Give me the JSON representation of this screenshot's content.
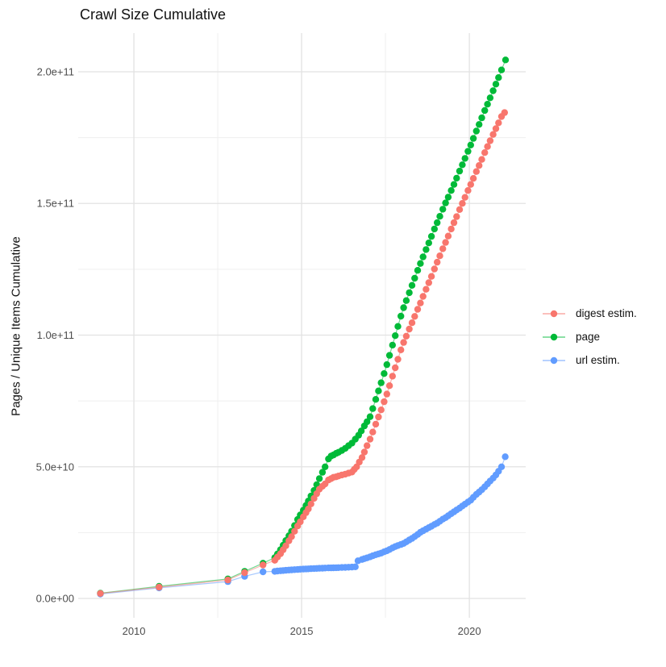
{
  "title": "Crawl Size Cumulative",
  "chart_data": {
    "type": "line",
    "title": "Crawl Size Cumulative",
    "xlabel": "",
    "ylabel": "Pages / Unique Items Cumulative",
    "values_unit": "billions (1e9) of pages / unique items",
    "x_domain": [
      2008.34,
      2021.68
    ],
    "y_domain_e9": [
      -7.35,
      214.7
    ],
    "grid": "on",
    "legend_position": "right-center",
    "x_ticks": [
      {
        "value": 2010,
        "label": "2010"
      },
      {
        "value": 2015,
        "label": "2015"
      },
      {
        "value": 2020,
        "label": "2020"
      }
    ],
    "x_minor_ticks": [
      2012.5,
      2017.5
    ],
    "y_ticks": [
      {
        "value_e9": 0,
        "label": "0.0e+00"
      },
      {
        "value_e9": 50,
        "label": "5.0e+10"
      },
      {
        "value_e9": 100,
        "label": "1.0e+11"
      },
      {
        "value_e9": 150,
        "label": "1.5e+11"
      },
      {
        "value_e9": 200,
        "label": "2.0e+11"
      }
    ],
    "y_minor_ticks_e9": [
      25,
      75,
      125,
      175
    ],
    "series": [
      {
        "name": "digest estim.",
        "color": "#F8766D",
        "points": [
          [
            2009.0,
            1.9
          ],
          [
            2010.75,
            4.3
          ],
          [
            2012.8,
            7.0
          ],
          [
            2013.3,
            9.8
          ],
          [
            2013.85,
            12.7
          ],
          [
            2014.2,
            14.5
          ],
          [
            2014.28,
            15.7
          ],
          [
            2014.37,
            17.0
          ],
          [
            2014.45,
            18.5
          ],
          [
            2014.53,
            20.0
          ],
          [
            2014.62,
            21.9
          ],
          [
            2014.7,
            23.5
          ],
          [
            2014.79,
            25.5
          ],
          [
            2014.88,
            27.5
          ],
          [
            2014.96,
            29.1
          ],
          [
            2015.05,
            31.0
          ],
          [
            2015.13,
            32.6
          ],
          [
            2015.2,
            34.0
          ],
          [
            2015.28,
            35.9
          ],
          [
            2015.37,
            38.0
          ],
          [
            2015.45,
            39.8
          ],
          [
            2015.53,
            41.5
          ],
          [
            2015.62,
            42.6
          ],
          [
            2015.7,
            43.5
          ],
          [
            2015.8,
            45.0
          ],
          [
            2015.88,
            45.5
          ],
          [
            2015.95,
            46.0
          ],
          [
            2016.03,
            46.2
          ],
          [
            2016.1,
            46.5
          ],
          [
            2016.2,
            46.9
          ],
          [
            2016.3,
            47.2
          ],
          [
            2016.4,
            47.6
          ],
          [
            2016.5,
            48.0
          ],
          [
            2016.57,
            49.0
          ],
          [
            2016.64,
            50.0
          ],
          [
            2016.72,
            51.8
          ],
          [
            2016.8,
            53.5
          ],
          [
            2016.87,
            55.6
          ],
          [
            2016.95,
            58.0
          ],
          [
            2017.04,
            60.5
          ],
          [
            2017.12,
            63.2
          ],
          [
            2017.21,
            66.2
          ],
          [
            2017.29,
            68.9
          ],
          [
            2017.37,
            71.6
          ],
          [
            2017.46,
            74.7
          ],
          [
            2017.54,
            77.6
          ],
          [
            2017.62,
            80.8
          ],
          [
            2017.71,
            84.4
          ],
          [
            2017.79,
            87.6
          ],
          [
            2017.87,
            90.8
          ],
          [
            2017.96,
            94.4
          ],
          [
            2018.04,
            97.2
          ],
          [
            2018.12,
            99.6
          ],
          [
            2018.21,
            102.3
          ],
          [
            2018.29,
            104.7
          ],
          [
            2018.37,
            107.1
          ],
          [
            2018.46,
            109.8
          ],
          [
            2018.54,
            112.2
          ],
          [
            2018.62,
            114.7
          ],
          [
            2018.71,
            117.4
          ],
          [
            2018.79,
            119.9
          ],
          [
            2018.87,
            122.3
          ],
          [
            2018.96,
            125.1
          ],
          [
            2019.04,
            127.7
          ],
          [
            2019.12,
            130.1
          ],
          [
            2019.21,
            132.8
          ],
          [
            2019.29,
            135.2
          ],
          [
            2019.37,
            137.6
          ],
          [
            2019.46,
            140.3
          ],
          [
            2019.54,
            142.7
          ],
          [
            2019.62,
            145.0
          ],
          [
            2019.71,
            147.7
          ],
          [
            2019.79,
            150.0
          ],
          [
            2019.87,
            152.3
          ],
          [
            2019.96,
            154.9
          ],
          [
            2020.04,
            157.2
          ],
          [
            2020.12,
            159.5
          ],
          [
            2020.21,
            162.1
          ],
          [
            2020.29,
            164.4
          ],
          [
            2020.37,
            166.7
          ],
          [
            2020.46,
            169.3
          ],
          [
            2020.54,
            171.6
          ],
          [
            2020.62,
            173.8
          ],
          [
            2020.71,
            176.2
          ],
          [
            2020.79,
            178.4
          ],
          [
            2020.87,
            180.6
          ],
          [
            2020.96,
            183.0
          ],
          [
            2021.05,
            184.5
          ]
        ]
      },
      {
        "name": "page",
        "color": "#00BA38",
        "points": [
          [
            2009.0,
            2.0
          ],
          [
            2010.75,
            4.6
          ],
          [
            2012.8,
            7.4
          ],
          [
            2013.3,
            10.3
          ],
          [
            2013.85,
            13.4
          ],
          [
            2014.2,
            15.5
          ],
          [
            2014.28,
            16.9
          ],
          [
            2014.37,
            18.5
          ],
          [
            2014.45,
            20.2
          ],
          [
            2014.53,
            22.0
          ],
          [
            2014.62,
            23.8
          ],
          [
            2014.7,
            25.5
          ],
          [
            2014.79,
            27.7
          ],
          [
            2014.88,
            30.0
          ],
          [
            2014.96,
            31.7
          ],
          [
            2015.05,
            33.5
          ],
          [
            2015.13,
            35.3
          ],
          [
            2015.2,
            37.0
          ],
          [
            2015.28,
            38.9
          ],
          [
            2015.37,
            41.0
          ],
          [
            2015.45,
            43.2
          ],
          [
            2015.53,
            45.5
          ],
          [
            2015.62,
            47.9
          ],
          [
            2015.7,
            50.0
          ],
          [
            2015.8,
            53.0
          ],
          [
            2015.88,
            54.1
          ],
          [
            2015.95,
            54.5
          ],
          [
            2016.03,
            55.1
          ],
          [
            2016.1,
            55.5
          ],
          [
            2016.2,
            56.2
          ],
          [
            2016.3,
            57.0
          ],
          [
            2016.4,
            58.0
          ],
          [
            2016.5,
            59.0
          ],
          [
            2016.6,
            60.5
          ],
          [
            2016.7,
            62.0
          ],
          [
            2016.78,
            63.6
          ],
          [
            2016.87,
            65.5
          ],
          [
            2016.95,
            67.1
          ],
          [
            2017.04,
            69.0
          ],
          [
            2017.12,
            72.1
          ],
          [
            2017.21,
            75.6
          ],
          [
            2017.29,
            78.8
          ],
          [
            2017.37,
            81.9
          ],
          [
            2017.46,
            85.4
          ],
          [
            2017.54,
            88.8
          ],
          [
            2017.62,
            92.3
          ],
          [
            2017.71,
            96.2
          ],
          [
            2017.79,
            99.8
          ],
          [
            2017.87,
            103.3
          ],
          [
            2017.96,
            107.2
          ],
          [
            2018.04,
            110.4
          ],
          [
            2018.12,
            113.1
          ],
          [
            2018.21,
            116.1
          ],
          [
            2018.29,
            118.9
          ],
          [
            2018.37,
            121.6
          ],
          [
            2018.46,
            124.6
          ],
          [
            2018.54,
            127.2
          ],
          [
            2018.62,
            129.7
          ],
          [
            2018.71,
            132.5
          ],
          [
            2018.79,
            135.0
          ],
          [
            2018.87,
            137.5
          ],
          [
            2018.96,
            140.3
          ],
          [
            2019.04,
            142.7
          ],
          [
            2019.12,
            145.1
          ],
          [
            2019.21,
            147.8
          ],
          [
            2019.29,
            150.2
          ],
          [
            2019.37,
            152.4
          ],
          [
            2019.46,
            154.9
          ],
          [
            2019.54,
            157.2
          ],
          [
            2019.62,
            159.6
          ],
          [
            2019.71,
            162.3
          ],
          [
            2019.79,
            164.7
          ],
          [
            2019.87,
            167.1
          ],
          [
            2019.96,
            169.8
          ],
          [
            2020.04,
            172.2
          ],
          [
            2020.12,
            174.7
          ],
          [
            2020.21,
            177.5
          ],
          [
            2020.29,
            180.0
          ],
          [
            2020.37,
            182.5
          ],
          [
            2020.46,
            185.3
          ],
          [
            2020.54,
            187.7
          ],
          [
            2020.62,
            190.1
          ],
          [
            2020.71,
            192.8
          ],
          [
            2020.79,
            195.3
          ],
          [
            2020.87,
            197.8
          ],
          [
            2020.96,
            200.7
          ],
          [
            2021.08,
            204.5
          ]
        ]
      },
      {
        "name": "url estim.",
        "color": "#619CFF",
        "points": [
          [
            2009.0,
            1.7
          ],
          [
            2010.75,
            4.0
          ],
          [
            2012.8,
            6.4
          ],
          [
            2013.3,
            8.4
          ],
          [
            2013.85,
            10.1
          ],
          [
            2014.2,
            10.3
          ],
          [
            2014.28,
            10.4
          ],
          [
            2014.37,
            10.5
          ],
          [
            2014.45,
            10.6
          ],
          [
            2014.53,
            10.7
          ],
          [
            2014.62,
            10.78
          ],
          [
            2014.7,
            10.85
          ],
          [
            2014.79,
            10.93
          ],
          [
            2014.88,
            11.0
          ],
          [
            2014.96,
            11.08
          ],
          [
            2015.05,
            11.15
          ],
          [
            2015.13,
            11.2
          ],
          [
            2015.2,
            11.25
          ],
          [
            2015.28,
            11.3
          ],
          [
            2015.37,
            11.35
          ],
          [
            2015.45,
            11.4
          ],
          [
            2015.53,
            11.45
          ],
          [
            2015.62,
            11.5
          ],
          [
            2015.7,
            11.55
          ],
          [
            2015.8,
            11.6
          ],
          [
            2015.88,
            11.62
          ],
          [
            2015.95,
            11.65
          ],
          [
            2016.03,
            11.68
          ],
          [
            2016.1,
            11.7
          ],
          [
            2016.2,
            11.75
          ],
          [
            2016.3,
            11.8
          ],
          [
            2016.4,
            11.85
          ],
          [
            2016.5,
            11.9
          ],
          [
            2016.6,
            12.0
          ],
          [
            2016.68,
            14.3
          ],
          [
            2016.8,
            14.8
          ],
          [
            2016.87,
            15.1
          ],
          [
            2016.95,
            15.4
          ],
          [
            2017.04,
            15.8
          ],
          [
            2017.12,
            16.2
          ],
          [
            2017.21,
            16.6
          ],
          [
            2017.29,
            16.9
          ],
          [
            2017.37,
            17.2
          ],
          [
            2017.46,
            17.7
          ],
          [
            2017.54,
            18.1
          ],
          [
            2017.62,
            18.6
          ],
          [
            2017.71,
            19.2
          ],
          [
            2017.79,
            19.7
          ],
          [
            2017.87,
            20.1
          ],
          [
            2017.96,
            20.5
          ],
          [
            2018.04,
            20.9
          ],
          [
            2018.12,
            21.5
          ],
          [
            2018.21,
            22.2
          ],
          [
            2018.29,
            22.8
          ],
          [
            2018.37,
            23.5
          ],
          [
            2018.46,
            24.3
          ],
          [
            2018.54,
            25.1
          ],
          [
            2018.62,
            25.7
          ],
          [
            2018.71,
            26.3
          ],
          [
            2018.79,
            26.9
          ],
          [
            2018.87,
            27.4
          ],
          [
            2018.96,
            28.1
          ],
          [
            2019.04,
            28.6
          ],
          [
            2019.12,
            29.3
          ],
          [
            2019.21,
            30.1
          ],
          [
            2019.29,
            30.7
          ],
          [
            2019.37,
            31.4
          ],
          [
            2019.46,
            32.2
          ],
          [
            2019.54,
            32.9
          ],
          [
            2019.62,
            33.6
          ],
          [
            2019.71,
            34.3
          ],
          [
            2019.79,
            35.1
          ],
          [
            2019.87,
            35.8
          ],
          [
            2019.96,
            36.6
          ],
          [
            2020.04,
            37.3
          ],
          [
            2020.12,
            38.4
          ],
          [
            2020.21,
            39.5
          ],
          [
            2020.29,
            40.4
          ],
          [
            2020.37,
            41.3
          ],
          [
            2020.46,
            42.4
          ],
          [
            2020.54,
            43.5
          ],
          [
            2020.62,
            44.6
          ],
          [
            2020.71,
            45.7
          ],
          [
            2020.79,
            46.9
          ],
          [
            2020.87,
            48.3
          ],
          [
            2020.96,
            50.0
          ],
          [
            2021.07,
            53.8
          ]
        ]
      }
    ]
  },
  "colors": {
    "background": "#ffffff",
    "grid_major": "#e2e2e2",
    "grid_minor": "#efefef",
    "tick_label": "#4d4d4d",
    "text": "#111111"
  }
}
